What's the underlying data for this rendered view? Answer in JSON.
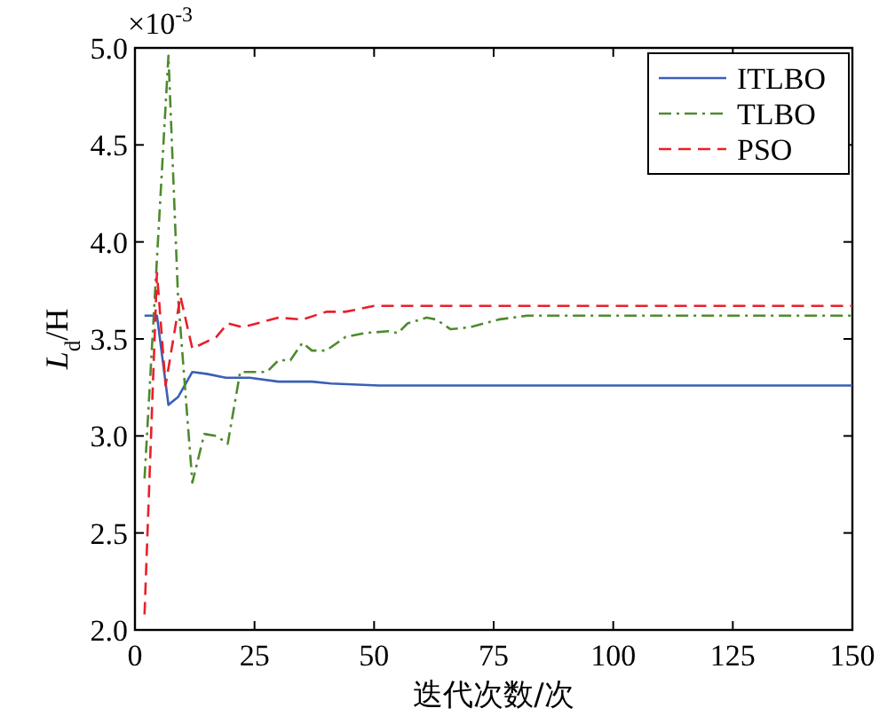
{
  "chart_data": {
    "type": "line",
    "xlabel": "迭代次数/次",
    "ylabel": "*L*$_{d}$/H",
    "annotations": [
      "×10$^{-3}$"
    ],
    "xlim": [
      0,
      150
    ],
    "xticks": [
      0,
      25,
      50,
      75,
      100,
      125,
      150
    ],
    "ylim": [
      2.0,
      5.0
    ],
    "yticks": [
      {
        "value": 2.0,
        "label": "2.0"
      },
      {
        "value": 2.5,
        "label": "2.5"
      },
      {
        "value": 3.0,
        "label": "3.0"
      },
      {
        "value": 3.5,
        "label": "3.5"
      },
      {
        "value": 4.0,
        "label": "4.0"
      },
      {
        "value": 4.5,
        "label": "4.5"
      },
      {
        "value": 5.0,
        "label": "5.0"
      }
    ],
    "legend": "top right",
    "series": [
      {
        "name": "ITLBO",
        "color": "#3a5fb5",
        "line_style": "solid",
        "x": [
          2,
          4.6,
          7,
          9,
          12,
          15,
          19,
          24,
          30,
          37,
          41,
          51,
          150
        ],
        "values": [
          3.62,
          3.62,
          3.16,
          3.2,
          3.33,
          3.32,
          3.3,
          3.3,
          3.28,
          3.28,
          3.27,
          3.26,
          3.26
        ]
      },
      {
        "name": "TLBO",
        "color": "#4e8a2e",
        "line_style": "dashdot",
        "x": [
          2,
          7,
          9,
          12,
          14.5,
          17,
          19.4,
          22,
          27.6,
          30,
          32.5,
          35,
          37,
          40,
          44,
          48,
          53,
          55,
          57,
          61,
          63,
          66,
          70,
          76,
          82,
          150
        ],
        "values": [
          2.78,
          4.96,
          3.72,
          2.76,
          3.01,
          3.0,
          2.96,
          3.33,
          3.33,
          3.39,
          3.39,
          3.48,
          3.44,
          3.44,
          3.51,
          3.53,
          3.54,
          3.53,
          3.58,
          3.61,
          3.6,
          3.55,
          3.56,
          3.6,
          3.62,
          3.62
        ]
      },
      {
        "name": "PSO",
        "color": "#e8202a",
        "line_style": "dashed",
        "x": [
          2,
          4.6,
          6.4,
          9.5,
          12,
          17,
          19.4,
          22.5,
          30,
          35,
          40,
          44,
          50,
          150
        ],
        "values": [
          2.08,
          3.84,
          3.26,
          3.72,
          3.45,
          3.51,
          3.58,
          3.56,
          3.61,
          3.6,
          3.64,
          3.64,
          3.67,
          3.67
        ]
      }
    ]
  }
}
